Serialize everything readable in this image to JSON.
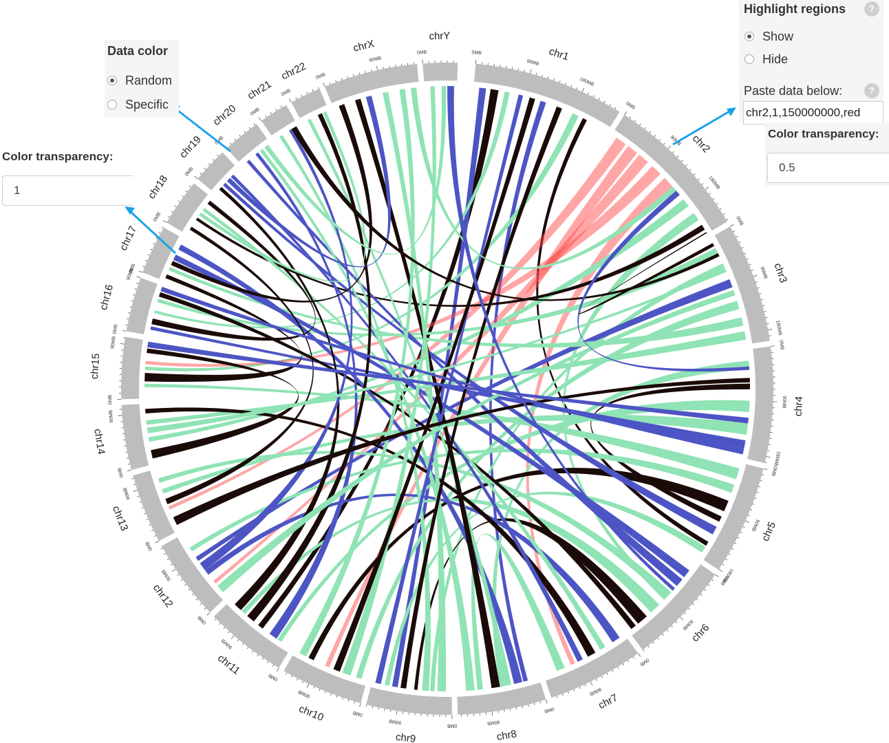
{
  "data_color": {
    "title": "Data color",
    "options": [
      {
        "label": "Random",
        "selected": true
      },
      {
        "label": "Specific",
        "selected": false
      }
    ]
  },
  "transparency_left": {
    "label": "Color transparency:",
    "value": "1"
  },
  "highlight": {
    "title": "Highlight regions",
    "help": "?",
    "options": [
      {
        "label": "Show",
        "selected": true
      },
      {
        "label": "Hide",
        "selected": false
      }
    ],
    "paste_label": "Paste data below:",
    "paste_value": "chr2,1,150000000,red"
  },
  "transparency_right": {
    "label": "Color transparency:",
    "value": "0.5"
  },
  "chromosomes": [
    "chr1",
    "chr2",
    "chr3",
    "chr4",
    "chr5",
    "chr6",
    "chr7",
    "chr8",
    "chr9",
    "chr10",
    "chr11",
    "chr12",
    "chr13",
    "chr14",
    "chr15",
    "chr16",
    "chr17",
    "chr18",
    "chr19",
    "chr20",
    "chr21",
    "chr22",
    "chrX",
    "chrY"
  ],
  "chromosome_sizes_mb": [
    249,
    243,
    198,
    191,
    181,
    171,
    159,
    146,
    141,
    136,
    135,
    134,
    115,
    107,
    102,
    90,
    81,
    78,
    59,
    63,
    48,
    51,
    155,
    57
  ],
  "tick_labels": [
    "0MB",
    "90MB",
    "180MB"
  ],
  "colors": {
    "blue": "#4d55c4",
    "green": "#8fe3b4",
    "black": "#1a0b08",
    "red": "#ff4d4d",
    "segment": "#bdbdbd",
    "arrow": "#1aa3e8",
    "panel": "#f5f5f5"
  },
  "links": [
    [
      "chr1",
      30,
      44,
      "chr11",
      60,
      70,
      "black"
    ],
    [
      "chr1",
      10,
      22,
      "chr9",
      95,
      105,
      "blue"
    ],
    [
      "chr1",
      55,
      64,
      "chr16",
      40,
      45,
      "green"
    ],
    [
      "chr1",
      120,
      130,
      "chr8",
      20,
      28,
      "blue"
    ],
    [
      "chr1",
      180,
      192,
      "chr15",
      50,
      56,
      "green"
    ],
    [
      "chr1",
      200,
      208,
      "chr5",
      150,
      158,
      "black"
    ],
    [
      "chr2",
      10,
      30,
      "chr13",
      40,
      46,
      "red"
    ],
    [
      "chr2",
      35,
      55,
      "chr10",
      70,
      78,
      "red"
    ],
    [
      "chr2",
      60,
      80,
      "chr12",
      30,
      36,
      "red"
    ],
    [
      "chr2",
      90,
      110,
      "chr15",
      60,
      66,
      "red"
    ],
    [
      "chr2",
      120,
      140,
      "chr7",
      100,
      108,
      "red"
    ],
    [
      "chr2",
      170,
      185,
      "chr14",
      40,
      48,
      "green"
    ],
    [
      "chr2",
      200,
      215,
      "chr6",
      80,
      88,
      "green"
    ],
    [
      "chr2",
      225,
      235,
      "chr18",
      30,
      35,
      "black"
    ],
    [
      "chr3",
      20,
      35,
      "chr16",
      60,
      66,
      "green"
    ],
    [
      "chr3",
      50,
      60,
      "chr9",
      30,
      38,
      "green"
    ],
    [
      "chr3",
      80,
      95,
      "chr12",
      80,
      88,
      "blue"
    ],
    [
      "chr3",
      120,
      135,
      "chr10",
      10,
      20,
      "green"
    ],
    [
      "chr3",
      150,
      165,
      "chr17",
      20,
      26,
      "green"
    ],
    [
      "chr3",
      175,
      190,
      "chr14",
      70,
      78,
      "green"
    ],
    [
      "chr4",
      20,
      35,
      "chr8",
      60,
      70,
      "green"
    ],
    [
      "chr4",
      60,
      70,
      "chr5",
      100,
      110,
      "black"
    ],
    [
      "chr4",
      90,
      110,
      "chr11",
      20,
      28,
      "green"
    ],
    [
      "chr4",
      130,
      150,
      "chr13",
      70,
      78,
      "green"
    ],
    [
      "chr4",
      160,
      175,
      "chr16",
      10,
      16,
      "blue"
    ],
    [
      "chr5",
      10,
      30,
      "chr15",
      20,
      26,
      "green"
    ],
    [
      "chr5",
      40,
      55,
      "chr12",
      100,
      108,
      "green"
    ],
    [
      "chr5",
      70,
      90,
      "chr10",
      100,
      110,
      "black"
    ],
    [
      "chr5",
      120,
      135,
      "chr19",
      20,
      26,
      "blue"
    ],
    [
      "chr5",
      160,
      172,
      "chr9",
      110,
      118,
      "green"
    ],
    [
      "chr6",
      20,
      35,
      "chr17",
      40,
      50,
      "blue"
    ],
    [
      "chr6",
      40,
      55,
      "chr20",
      10,
      16,
      "blue"
    ],
    [
      "chr6",
      70,
      85,
      "chr13",
      90,
      98,
      "green"
    ],
    [
      "chr6",
      100,
      120,
      "chr11",
      100,
      108,
      "green"
    ],
    [
      "chr6",
      130,
      150,
      "chr9",
      60,
      66,
      "black"
    ],
    [
      "chr6",
      155,
      165,
      "chr16",
      70,
      78,
      "black"
    ],
    [
      "chr7",
      10,
      25,
      "chr12",
      50,
      60,
      "blue"
    ],
    [
      "chr7",
      40,
      50,
      "chr18",
      50,
      56,
      "green"
    ],
    [
      "chr7",
      60,
      75,
      "chr14",
      90,
      98,
      "black"
    ],
    [
      "chr7",
      85,
      95,
      "chr19",
      40,
      46,
      "blue"
    ],
    [
      "chr7",
      120,
      135,
      "chr8",
      100,
      110,
      "green"
    ],
    [
      "chr8",
      30,
      45,
      "chr17",
      60,
      70,
      "blue"
    ],
    [
      "chr8",
      50,
      60,
      "chr22",
      10,
      16,
      "green"
    ],
    [
      "chr8",
      70,
      85,
      "chrX",
      40,
      50,
      "black"
    ],
    [
      "chr8",
      115,
      130,
      "chr20",
      40,
      46,
      "green"
    ],
    [
      "chr9",
      10,
      25,
      "chrX",
      90,
      100,
      "green"
    ],
    [
      "chr9",
      40,
      52,
      "chr21",
      10,
      16,
      "green"
    ],
    [
      "chr9",
      80,
      90,
      "chr1",
      150,
      160,
      "black"
    ],
    [
      "chr9",
      125,
      135,
      "chr1",
      80,
      88,
      "blue"
    ],
    [
      "chr10",
      30,
      45,
      "chrY",
      10,
      18,
      "green"
    ],
    [
      "chr10",
      50,
      62,
      "chr1",
      100,
      110,
      "black"
    ],
    [
      "chr10",
      115,
      128,
      "chrX",
      120,
      130,
      "green"
    ],
    [
      "chr11",
      30,
      45,
      "chr20",
      30,
      36,
      "blue"
    ],
    [
      "chr11",
      80,
      95,
      "chr22",
      30,
      38,
      "black"
    ],
    [
      "chr11",
      110,
      125,
      "chr19",
      10,
      16,
      "black"
    ],
    [
      "chr12",
      10,
      25,
      "chr3",
      100,
      110,
      "green"
    ],
    [
      "chr12",
      60,
      75,
      "chr21",
      30,
      36,
      "blue"
    ],
    [
      "chr13",
      10,
      25,
      "chr4",
      50,
      58,
      "black"
    ],
    [
      "chr13",
      50,
      60,
      "chr18",
      10,
      16,
      "black"
    ],
    [
      "chr14",
      10,
      25,
      "chr15",
      80,
      88,
      "black"
    ],
    [
      "chr14",
      55,
      65,
      "chr3",
      60,
      66,
      "green"
    ],
    [
      "chr15",
      30,
      45,
      "chr17",
      5,
      12,
      "black"
    ],
    [
      "chr15",
      90,
      100,
      "chr4",
      120,
      130,
      "blue"
    ],
    [
      "chr16",
      20,
      30,
      "chr18",
      65,
      72,
      "black"
    ],
    [
      "chr16",
      80,
      88,
      "chr4",
      175,
      185,
      "blue"
    ],
    [
      "chr17",
      30,
      38,
      "chrX",
      10,
      20,
      "black"
    ],
    [
      "chr18",
      40,
      46,
      "chr22",
      40,
      46,
      "green"
    ],
    [
      "chr19",
      30,
      38,
      "chrX",
      60,
      70,
      "blue"
    ],
    [
      "chr20",
      50,
      58,
      "chrY",
      30,
      38,
      "green"
    ],
    [
      "chr21",
      35,
      45,
      "chr3",
      30,
      36,
      "black"
    ],
    [
      "chrX",
      140,
      150,
      "chr2",
      140,
      150,
      "green"
    ],
    [
      "chrY",
      40,
      52,
      "chr6",
      60,
      66,
      "blue"
    ],
    [
      "chr2",
      150,
      160,
      "chr4",
      30,
      36,
      "blue"
    ],
    [
      "chr3",
      10,
      16,
      "chr2",
      240,
      242,
      "black"
    ]
  ]
}
